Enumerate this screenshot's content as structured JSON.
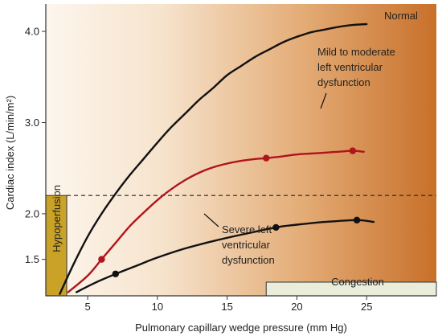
{
  "chart_data": {
    "type": "line",
    "xlabel": "Pulmonary capillary wedge pressure (mm Hg)",
    "ylabel": "Cardiac index (L/min/m²)",
    "xlim": [
      2,
      30
    ],
    "ylim": [
      1.1,
      4.3
    ],
    "x_ticks": [
      5,
      10,
      15,
      20,
      25
    ],
    "y_ticks": [
      1.5,
      2.0,
      3.0,
      4.0
    ],
    "y_tick_labels": [
      "1.5",
      "2.0",
      "3.0",
      "4.0"
    ],
    "grid": false,
    "threshold_line": {
      "y": 2.2,
      "style": "dashed"
    },
    "series": [
      {
        "name": "Normal",
        "color": "#111111",
        "points": [
          [
            3.0,
            1.12
          ],
          [
            4.0,
            1.45
          ],
          [
            5.0,
            1.75
          ],
          [
            6.0,
            2.0
          ],
          [
            7.0,
            2.22
          ],
          [
            8.0,
            2.42
          ],
          [
            9.0,
            2.6
          ],
          [
            10.0,
            2.78
          ],
          [
            11.0,
            2.95
          ],
          [
            12.0,
            3.1
          ],
          [
            13.0,
            3.25
          ],
          [
            14.0,
            3.38
          ],
          [
            15.0,
            3.52
          ],
          [
            16.0,
            3.62
          ],
          [
            17.0,
            3.72
          ],
          [
            18.0,
            3.8
          ],
          [
            19.0,
            3.88
          ],
          [
            20.0,
            3.94
          ],
          [
            21.0,
            3.99
          ],
          [
            22.0,
            4.02
          ],
          [
            23.0,
            4.05
          ],
          [
            24.0,
            4.07
          ],
          [
            25.0,
            4.08
          ]
        ],
        "markers": []
      },
      {
        "name": "Mild to moderate left ventricular dysfunction",
        "color": "#b0141c",
        "points": [
          [
            3.6,
            1.14
          ],
          [
            5.0,
            1.32
          ],
          [
            6.0,
            1.5
          ],
          [
            7.0,
            1.68
          ],
          [
            8.0,
            1.86
          ],
          [
            9.0,
            2.01
          ],
          [
            10.0,
            2.15
          ],
          [
            11.0,
            2.27
          ],
          [
            12.0,
            2.37
          ],
          [
            13.0,
            2.45
          ],
          [
            14.0,
            2.51
          ],
          [
            15.0,
            2.55
          ],
          [
            16.0,
            2.58
          ],
          [
            17.0,
            2.6
          ],
          [
            17.8,
            2.61
          ],
          [
            19.0,
            2.63
          ],
          [
            20.0,
            2.65
          ],
          [
            21.0,
            2.66
          ],
          [
            22.0,
            2.67
          ],
          [
            23.0,
            2.68
          ],
          [
            24.0,
            2.69
          ],
          [
            24.8,
            2.68
          ]
        ],
        "markers": [
          [
            6.0,
            1.5
          ],
          [
            17.8,
            2.61
          ],
          [
            24.0,
            2.69
          ]
        ]
      },
      {
        "name": "Severe left ventricular dysfunction",
        "color": "#111111",
        "points": [
          [
            4.2,
            1.14
          ],
          [
            5.5,
            1.24
          ],
          [
            7.0,
            1.34
          ],
          [
            8.5,
            1.43
          ],
          [
            10.0,
            1.52
          ],
          [
            12.0,
            1.62
          ],
          [
            14.0,
            1.7
          ],
          [
            16.0,
            1.77
          ],
          [
            18.5,
            1.85
          ],
          [
            20.0,
            1.88
          ],
          [
            22.0,
            1.91
          ],
          [
            24.3,
            1.93
          ],
          [
            25.5,
            1.91
          ]
        ],
        "markers": [
          [
            7.0,
            1.34
          ],
          [
            18.5,
            1.85
          ],
          [
            24.3,
            1.93
          ]
        ]
      }
    ],
    "annotations": {
      "normal": "Normal",
      "mild": [
        "Mild to moderate",
        "left ventricular",
        "dysfunction"
      ],
      "severe": [
        "Severe left",
        "ventricular",
        "dysfunction"
      ],
      "hypoperfusion": "Hypoperfusion",
      "congestion": "Congestion"
    },
    "colors": {
      "background_start": "#fdf6ee",
      "background_end": "#c8702a",
      "region_fill": "#c9a227",
      "congestion_fill": "#eaedda",
      "axis": "#333333"
    }
  }
}
